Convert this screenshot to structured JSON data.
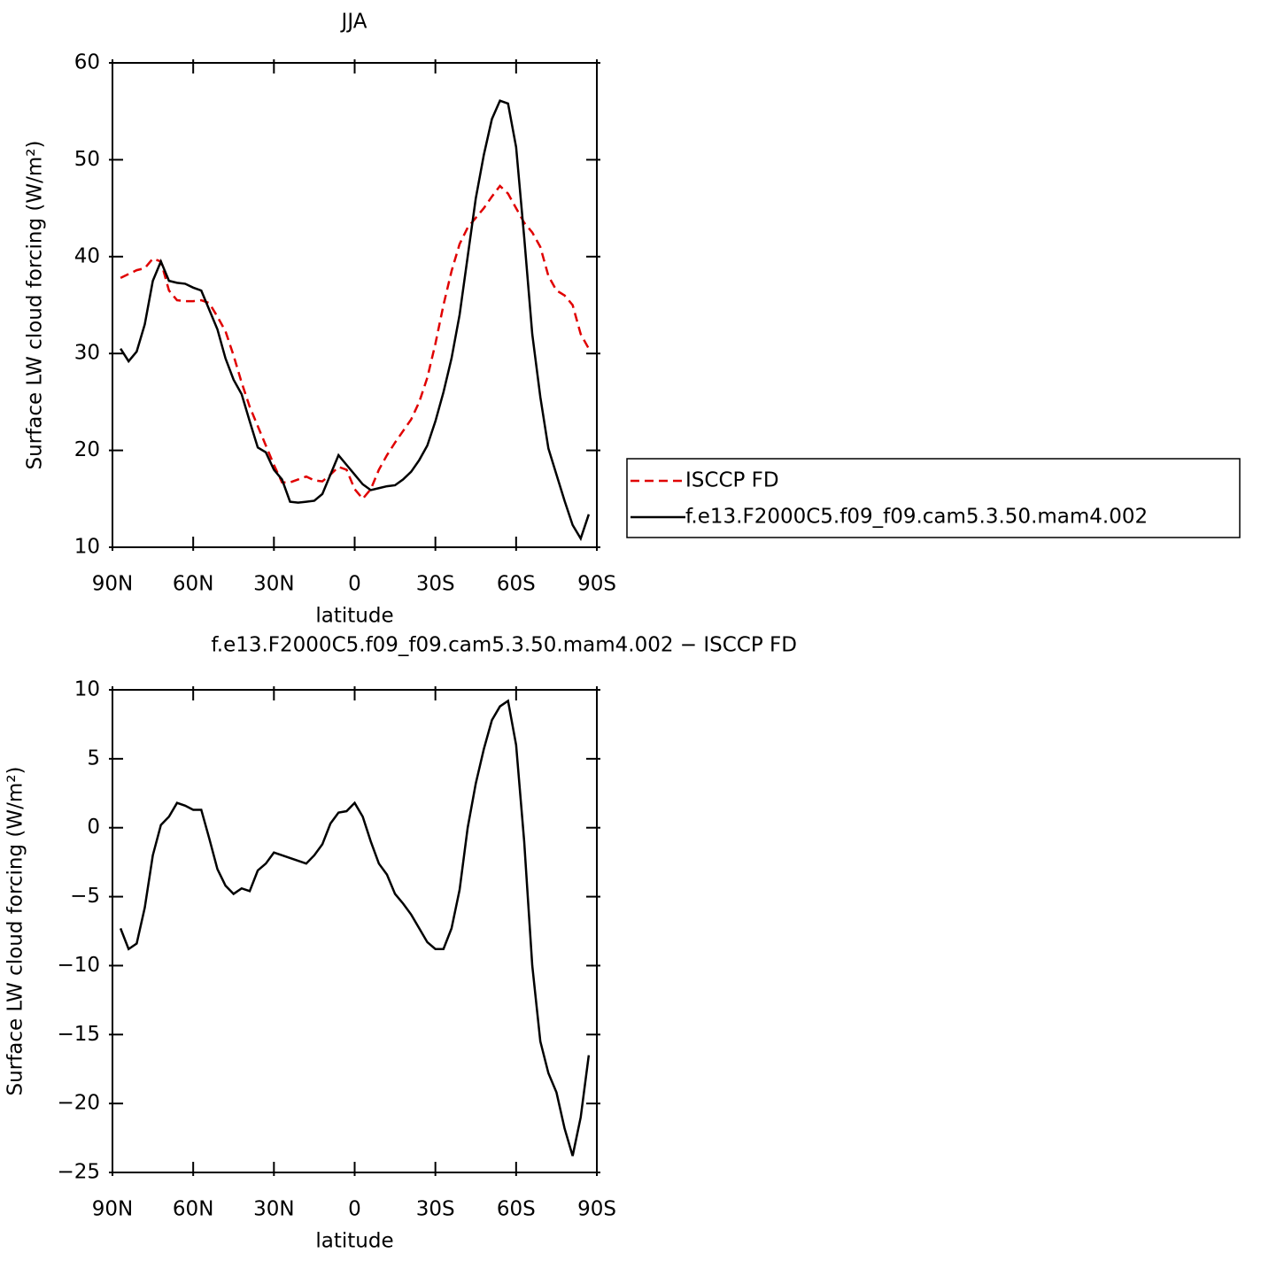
{
  "chart_data": [
    {
      "type": "line",
      "title": "JJA",
      "xlabel": "latitude",
      "ylabel": "Surface LW cloud forcing (W/m²)",
      "xlim": [
        90,
        -90
      ],
      "xticks": [
        {
          "value": 90,
          "label": "90N"
        },
        {
          "value": 60,
          "label": "60N"
        },
        {
          "value": 30,
          "label": "30N"
        },
        0,
        {
          "value": -30,
          "label": "30S"
        },
        {
          "value": -60,
          "label": "60S"
        },
        {
          "value": -90,
          "label": "90S"
        }
      ],
      "ylim": [
        10,
        60
      ],
      "yticks": [
        10,
        20,
        30,
        40,
        50,
        60
      ],
      "legend": "right",
      "x": [
        87,
        84,
        81,
        78,
        75,
        72,
        69,
        66,
        63,
        60,
        57,
        54,
        51,
        48,
        45,
        42,
        39,
        36,
        33,
        30,
        27,
        24,
        21,
        18,
        15,
        12,
        9,
        6,
        3,
        0,
        -3,
        -6,
        -9,
        -12,
        -15,
        -18,
        -21,
        -24,
        -27,
        -30,
        -33,
        -36,
        -39,
        -42,
        -45,
        -48,
        -51,
        -54,
        -57,
        -60,
        -63,
        -66,
        -69,
        -72,
        -75,
        -78,
        -81,
        -84,
        -87
      ],
      "series": [
        {
          "name": "ISCCP FD",
          "color": "#e00000",
          "dash": "dashed",
          "values": [
            37.8,
            38.2,
            38.6,
            38.8,
            39.8,
            39.5,
            36.5,
            35.5,
            35.4,
            35.4,
            35.5,
            35.2,
            33.8,
            32.3,
            29.8,
            27,
            24.5,
            22.5,
            20.5,
            18.5,
            16.7,
            16.7,
            17,
            17.3,
            16.9,
            16.8,
            17.5,
            18.3,
            18,
            16,
            15,
            16,
            18,
            19.5,
            20.8,
            22,
            23.2,
            25,
            27.5,
            31,
            35,
            38.5,
            41.3,
            43,
            44,
            45,
            46.2,
            47.3,
            46.5,
            45,
            43.5,
            42.5,
            41,
            38,
            36.5,
            36,
            35,
            32,
            30.5
          ]
        },
        {
          "name": "f.e13.F2000C5.f09_f09.cam5.3.50.mam4.002",
          "color": "#000000",
          "dash": "solid",
          "values": [
            30.5,
            29.2,
            30.2,
            33,
            37.5,
            39.5,
            37.5,
            37.3,
            37.2,
            36.8,
            36.5,
            34.5,
            32.5,
            29.5,
            27.3,
            25.8,
            23,
            20.3,
            19.8,
            18,
            17,
            14.7,
            14.6,
            14.7,
            14.8,
            15.5,
            17.5,
            19.5,
            18.5,
            17.5,
            16.5,
            15.9,
            16.1,
            16.3,
            16.4,
            17,
            17.8,
            19,
            20.5,
            23,
            26,
            29.5,
            34,
            40,
            46,
            50.5,
            54.2,
            56.1,
            55.8,
            51.3,
            42,
            32,
            25.5,
            20.2,
            17.5,
            14.8,
            12.3,
            10.9,
            13.4
          ]
        }
      ]
    },
    {
      "type": "line",
      "title": "f.e13.F2000C5.f09_f09.cam5.3.50.mam4.002 − ISCCP FD",
      "xlabel": "latitude",
      "ylabel": "Surface LW cloud forcing (W/m²)",
      "xlim": [
        90,
        -90
      ],
      "xticks": [
        {
          "value": 90,
          "label": "90N"
        },
        {
          "value": 60,
          "label": "60N"
        },
        {
          "value": 30,
          "label": "30N"
        },
        0,
        {
          "value": -30,
          "label": "30S"
        },
        {
          "value": -60,
          "label": "60S"
        },
        {
          "value": -90,
          "label": "90S"
        }
      ],
      "ylim": [
        -25,
        10
      ],
      "yticks": [
        {
          "value": -25,
          "label": "−25"
        },
        {
          "value": -20,
          "label": "−20"
        },
        {
          "value": -15,
          "label": "−15"
        },
        {
          "value": -10,
          "label": "−10"
        },
        {
          "value": -5,
          "label": "−5"
        },
        0,
        5,
        10
      ],
      "x": [
        87,
        84,
        81,
        78,
        75,
        72,
        69,
        66,
        63,
        60,
        57,
        54,
        51,
        48,
        45,
        42,
        39,
        36,
        33,
        30,
        27,
        24,
        21,
        18,
        15,
        12,
        9,
        6,
        3,
        0,
        -3,
        -6,
        -9,
        -12,
        -15,
        -18,
        -21,
        -24,
        -27,
        -30,
        -33,
        -36,
        -39,
        -42,
        -45,
        -48,
        -51,
        -54,
        -57,
        -60,
        -63,
        -66,
        -69,
        -72,
        -75,
        -78,
        -81,
        -84,
        -87
      ],
      "series": [
        {
          "color": "#000000",
          "dash": "solid",
          "values": [
            -7.3,
            -8.8,
            -8.4,
            -5.8,
            -2,
            0.2,
            0.8,
            1.8,
            1.6,
            1.3,
            1.3,
            -0.8,
            -3,
            -4.2,
            -4.8,
            -4.4,
            -4.6,
            -3.1,
            -2.6,
            -1.8,
            -2,
            -2.2,
            -2.4,
            -2.6,
            -2,
            -1.2,
            0.3,
            1.1,
            1.2,
            1.8,
            0.8,
            -1,
            -2.6,
            -3.4,
            -4.8,
            -5.5,
            -6.3,
            -7.3,
            -8.3,
            -8.8,
            -8.8,
            -7.3,
            -4.5,
            0,
            3.2,
            5.7,
            7.8,
            8.8,
            9.2,
            6,
            -1,
            -10,
            -15.5,
            -17.8,
            -19.2,
            -21.8,
            -23.8,
            -21,
            -16.5
          ]
        }
      ]
    }
  ]
}
